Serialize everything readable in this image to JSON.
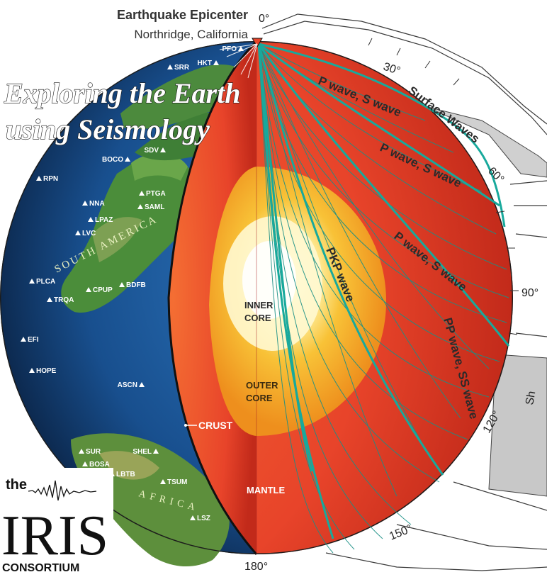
{
  "header": {
    "title": "Earthquake Epicenter",
    "subtitle": "Northridge, California"
  },
  "banner": {
    "line1": "Exploring the Earth",
    "line2": "using Seismology"
  },
  "degrees": {
    "d0": "0°",
    "d30": "30°",
    "d60": "60°",
    "d90": "90°",
    "d120": "120°",
    "d150": "150°",
    "d180": "180°"
  },
  "waves": {
    "surface": "Surface Waves",
    "ps1": "P wave, S wave",
    "ps2": "P wave, S wave",
    "ps3": "P wave, S wave",
    "pkp": "PKP wave",
    "ppss": "PP wave, SS wave",
    "edge": "Sh"
  },
  "layers": {
    "inner1": "INNER",
    "inner2": "CORE",
    "outer1": "OUTER",
    "outer2": "CORE",
    "crust": "CRUST",
    "mantle": "MANTLE"
  },
  "continents": {
    "south_america": "SOUTH AMERICA",
    "africa": "AFRICA"
  },
  "stations": [
    "PFO",
    "SRR",
    "HKT",
    "SDV",
    "BOCO",
    "RPN",
    "NNA",
    "PTGA",
    "SAML",
    "LPAZ",
    "LVC",
    "BDFB",
    "PLCA",
    "CPUP",
    "TRQA",
    "EFI",
    "HOPE",
    "ASCN",
    "SHEL",
    "SUR",
    "BOSA",
    "LBTB",
    "TSUM",
    "LSZ"
  ],
  "logo": {
    "the": "the",
    "iris": "IRIS",
    "consortium": "CONSORTIUM"
  },
  "colors": {
    "ocean": "#1d4f8c",
    "land": "#3f8a3a",
    "mantle": "#e8452a",
    "outer_core": "#f3b02a",
    "inner_core": "#fff7c8",
    "ray": "#1aa69a"
  }
}
